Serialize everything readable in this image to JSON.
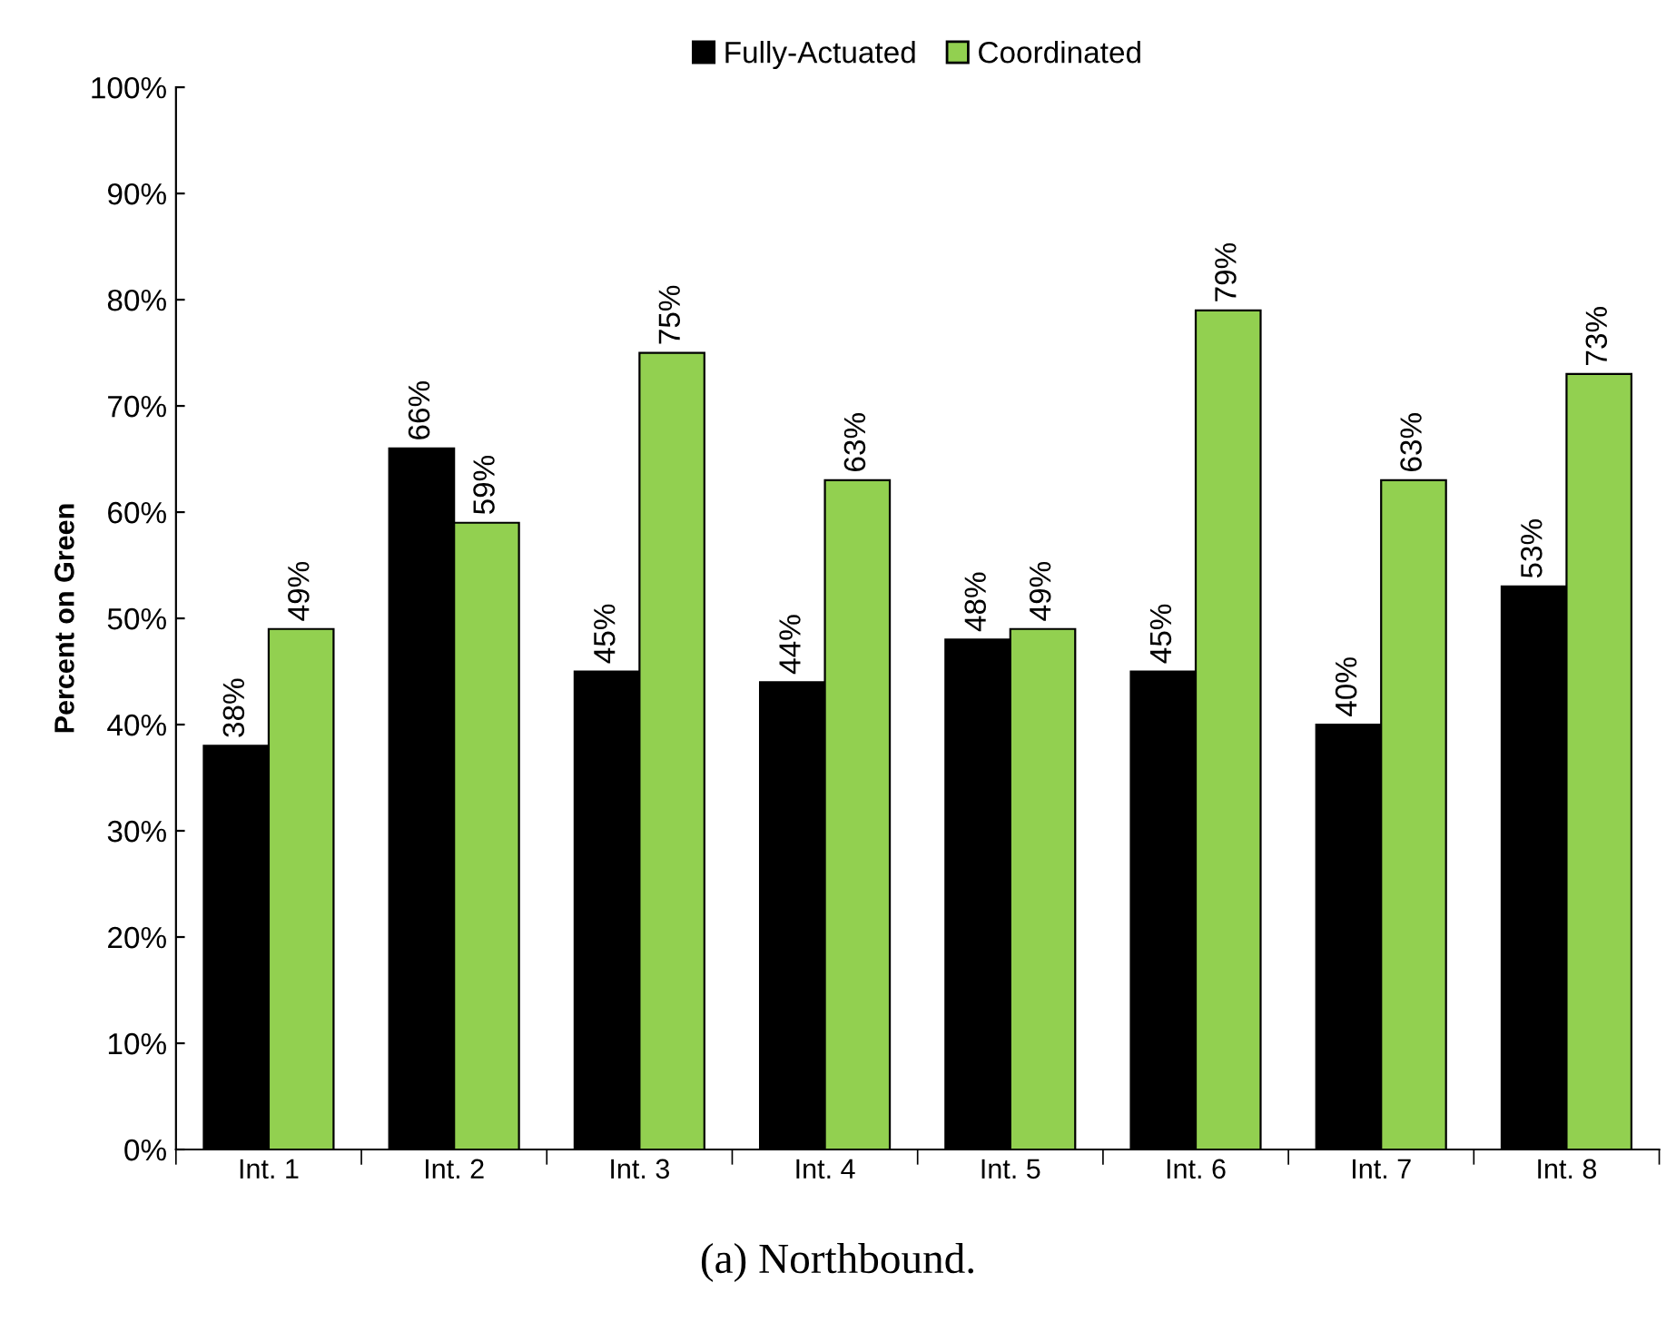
{
  "chart_data": {
    "type": "bar",
    "ylabel": "Percent on Green",
    "categories": [
      "Int. 1",
      "Int. 2",
      "Int. 3",
      "Int. 4",
      "Int. 5",
      "Int. 6",
      "Int. 7",
      "Int. 8"
    ],
    "series": [
      {
        "name": "Fully-Actuated",
        "color": "#000000",
        "values": [
          38,
          66,
          45,
          44,
          48,
          45,
          40,
          53
        ],
        "value_labels": [
          "38%",
          "66%",
          "45%",
          "44%",
          "48%",
          "45%",
          "40%",
          "53%"
        ]
      },
      {
        "name": "Coordinated",
        "color": "#92d050",
        "values": [
          49,
          59,
          75,
          63,
          49,
          79,
          63,
          73
        ],
        "value_labels": [
          "49%",
          "59%",
          "75%",
          "63%",
          "49%",
          "79%",
          "63%",
          "73%"
        ]
      }
    ],
    "ylim": [
      0,
      100
    ],
    "yticks": [
      {
        "value": 0,
        "label": "0%"
      },
      {
        "value": 10,
        "label": "10%"
      },
      {
        "value": 20,
        "label": "20%"
      },
      {
        "value": 30,
        "label": "30%"
      },
      {
        "value": 40,
        "label": "40%"
      },
      {
        "value": 50,
        "label": "50%"
      },
      {
        "value": 60,
        "label": "60%"
      },
      {
        "value": 70,
        "label": "70%"
      },
      {
        "value": 80,
        "label": "80%"
      },
      {
        "value": 90,
        "label": "90%"
      },
      {
        "value": 100,
        "label": "100%"
      }
    ],
    "grid": false,
    "legend": "top",
    "annotations": [
      "(a) Northbound."
    ]
  }
}
